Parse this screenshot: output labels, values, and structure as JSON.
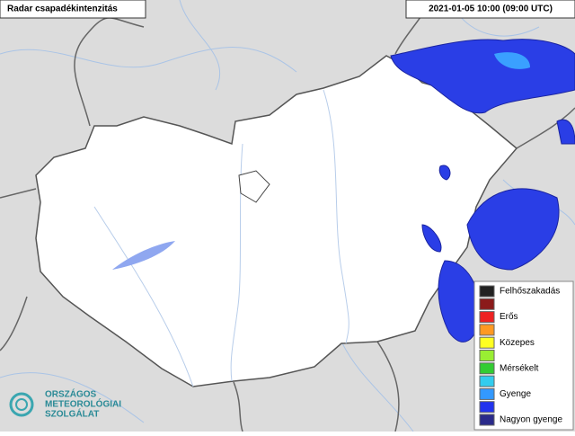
{
  "header": {
    "title": "Radar csapadékintenzitás",
    "timestamp": "2021-01-05 10:00 (09:00 UTC)"
  },
  "legend": {
    "items": [
      {
        "label": "Felhőszakadás",
        "color": "#222222"
      },
      {
        "label": null,
        "color": "#8b1a1a"
      },
      {
        "label": "Erős",
        "color": "#ee2222"
      },
      {
        "label": null,
        "color": "#ff9922"
      },
      {
        "label": "Közepes",
        "color": "#ffff22"
      },
      {
        "label": null,
        "color": "#99ee33"
      },
      {
        "label": "Mérsékelt",
        "color": "#33cc33"
      },
      {
        "label": null,
        "color": "#33ccee"
      },
      {
        "label": "Gyenge",
        "color": "#3399ff"
      },
      {
        "label": null,
        "color": "#2233ee"
      },
      {
        "label": "Nagyon gyenge",
        "color": "#2a2a8a"
      }
    ]
  },
  "logo": {
    "lines": [
      "ORSZÁGOS",
      "METEOROLÓGIAI",
      "SZOLGÁLAT"
    ]
  }
}
